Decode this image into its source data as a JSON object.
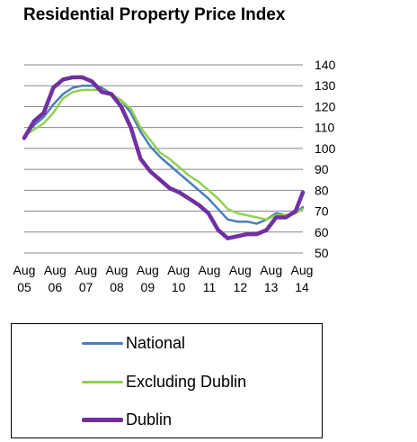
{
  "chart_data": {
    "type": "line",
    "title": "Residential Property Price Index",
    "xlabel": "",
    "ylabel": "",
    "ylim": [
      50,
      140
    ],
    "yticks": [
      50,
      60,
      70,
      80,
      90,
      100,
      110,
      120,
      130,
      140
    ],
    "y_axis_side": "right",
    "grid": true,
    "legend_position": "bottom",
    "xtick_labels": [
      {
        "month": "Aug",
        "year": "05"
      },
      {
        "month": "Aug",
        "year": "06"
      },
      {
        "month": "Aug",
        "year": "07"
      },
      {
        "month": "Aug",
        "year": "08"
      },
      {
        "month": "Aug",
        "year": "09"
      },
      {
        "month": "Aug",
        "year": "10"
      },
      {
        "month": "Aug",
        "year": "11"
      },
      {
        "month": "Aug",
        "year": "12"
      },
      {
        "month": "Aug",
        "year": "13"
      },
      {
        "month": "Aug",
        "year": "14"
      }
    ],
    "x": [
      "2005-01",
      "2005-05",
      "2005-09",
      "2006-01",
      "2006-05",
      "2006-09",
      "2007-01",
      "2007-05",
      "2007-09",
      "2008-01",
      "2008-05",
      "2008-09",
      "2009-01",
      "2009-05",
      "2009-09",
      "2010-01",
      "2010-05",
      "2010-09",
      "2011-01",
      "2011-05",
      "2011-09",
      "2012-01",
      "2012-05",
      "2012-09",
      "2013-01",
      "2013-05",
      "2013-09",
      "2014-01",
      "2014-05",
      "2014-08"
    ],
    "series": [
      {
        "name": "National",
        "color": "#4A7EBB",
        "values": [
          106,
          111,
          115,
          121,
          126,
          129,
          130,
          130,
          129,
          126,
          123,
          117,
          108,
          101,
          96,
          92,
          88,
          84,
          80,
          76,
          71,
          66,
          65,
          65,
          64,
          66,
          69,
          68,
          69,
          72
        ]
      },
      {
        "name": "Excluding Dublin",
        "color": "#92D050",
        "values": [
          106,
          109,
          112,
          117,
          124,
          127,
          128,
          128,
          128,
          126,
          123,
          119,
          110,
          104,
          98,
          95,
          91,
          87,
          84,
          80,
          76,
          71,
          69,
          68,
          67,
          66,
          68,
          68,
          69,
          71
        ]
      },
      {
        "name": "Dublin",
        "color": "#7030A0",
        "values": [
          105,
          113,
          117,
          129,
          133,
          134,
          134,
          132,
          127,
          126,
          120,
          110,
          95,
          89,
          85,
          81,
          79,
          76,
          73,
          69,
          61,
          57,
          58,
          59,
          59,
          61,
          67,
          67,
          70,
          79
        ]
      }
    ]
  },
  "legend": {
    "items": [
      {
        "label": "National",
        "color": "#4A7EBB"
      },
      {
        "label": "Excluding Dublin",
        "color": "#92D050"
      },
      {
        "label": "Dublin",
        "color": "#7030A0"
      }
    ]
  }
}
